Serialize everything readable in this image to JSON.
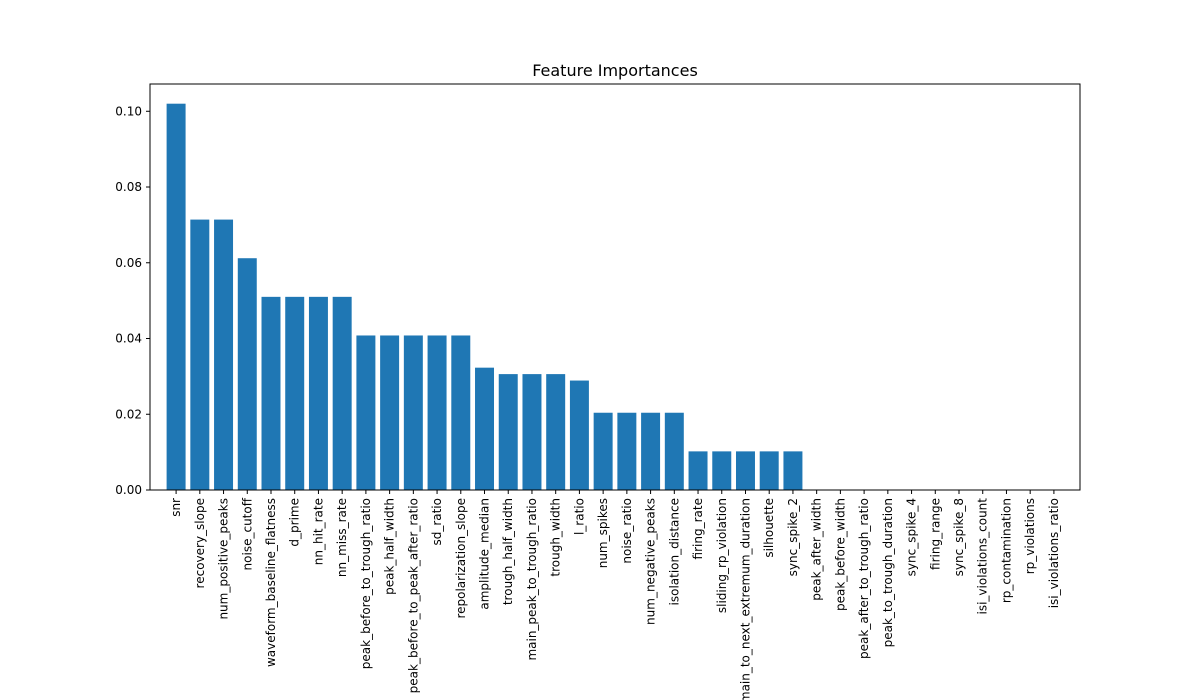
{
  "chart_data": {
    "type": "bar",
    "title": "Feature Importances",
    "xlabel": "",
    "ylabel": "",
    "ylim": [
      0,
      0.1072
    ],
    "yticks": [
      0.0,
      0.02,
      0.04,
      0.06,
      0.08,
      0.1
    ],
    "ytick_labels": [
      "0.00",
      "0.02",
      "0.04",
      "0.06",
      "0.08",
      "0.10"
    ],
    "grid": false,
    "bar_color": "#1f77b4",
    "categories": [
      "snr",
      "recovery_slope",
      "num_positive_peaks",
      "noise_cutoff",
      "waveform_baseline_flatness",
      "d_prime",
      "nn_hit_rate",
      "nn_miss_rate",
      "peak_before_to_trough_ratio",
      "peak_half_width",
      "peak_before_to_peak_after_ratio",
      "sd_ratio",
      "repolarization_slope",
      "amplitude_median",
      "trough_half_width",
      "main_peak_to_trough_ratio",
      "trough_width",
      "l_ratio",
      "num_spikes",
      "noise_ratio",
      "num_negative_peaks",
      "isolation_distance",
      "firing_rate",
      "sliding_rp_violation",
      "main_to_next_extremum_duration",
      "silhouette",
      "sync_spike_2",
      "peak_after_width",
      "peak_before_width",
      "peak_after_to_trough_ratio",
      "peak_to_trough_duration",
      "sync_spike_4",
      "firing_range",
      "sync_spike_8",
      "isi_violations_count",
      "rp_contamination",
      "rp_violations",
      "isi_violations_ratio"
    ],
    "values": [
      0.102,
      0.0714,
      0.0714,
      0.0612,
      0.051,
      0.051,
      0.051,
      0.051,
      0.0408,
      0.0408,
      0.0408,
      0.0408,
      0.0408,
      0.0323,
      0.0306,
      0.0306,
      0.0306,
      0.0289,
      0.0204,
      0.0204,
      0.0204,
      0.0204,
      0.0102,
      0.0102,
      0.0102,
      0.0102,
      0.0102,
      0.0,
      0.0,
      0.0,
      0.0,
      0.0,
      0.0,
      0.0,
      0.0,
      0.0,
      0.0,
      0.0
    ]
  }
}
